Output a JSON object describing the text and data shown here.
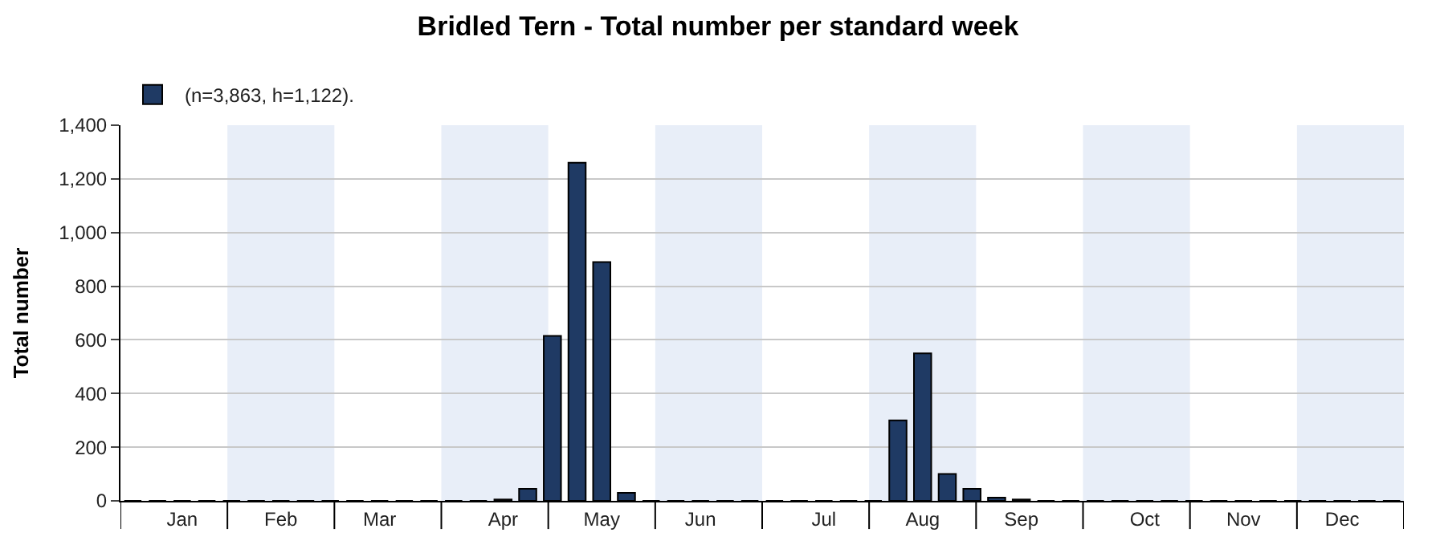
{
  "chart_data": {
    "type": "bar",
    "title": "Bridled Tern - Total number per standard week",
    "ylabel": "Total number",
    "categories": [
      null,
      null,
      "Jan",
      null,
      null,
      null,
      "Feb",
      null,
      null,
      null,
      "Mar",
      null,
      null,
      null,
      null,
      "Apr",
      null,
      null,
      null,
      "May",
      null,
      null,
      null,
      "Jun",
      null,
      null,
      null,
      null,
      "Jul",
      null,
      null,
      null,
      "Aug",
      null,
      null,
      null,
      "Sep",
      null,
      null,
      null,
      null,
      "Oct",
      null,
      null,
      null,
      "Nov",
      null,
      null,
      null,
      "Dec",
      null,
      null
    ],
    "series": [
      {
        "name": "(n=3,863, h=1,122).",
        "color": "#1f3a64",
        "values": [
          0,
          0,
          0,
          0,
          0,
          0,
          0,
          0,
          0,
          0,
          0,
          0,
          0,
          0,
          0,
          5,
          45,
          615,
          1260,
          890,
          30,
          0,
          0,
          0,
          0,
          0,
          0,
          0,
          0,
          0,
          0,
          300,
          550,
          100,
          45,
          12,
          5,
          0,
          0,
          0,
          0,
          0,
          0,
          0,
          0,
          0,
          0,
          0,
          0,
          0,
          0,
          0
        ]
      }
    ],
    "ylim": [
      0,
      1400
    ],
    "yticks": [
      0,
      {
        "value": 200,
        "label": "200"
      },
      400,
      600,
      800,
      {
        "value": 1000,
        "label": "1,000"
      },
      {
        "value": 1200,
        "label": "1,200"
      },
      {
        "value": 1400,
        "label": "1,400"
      }
    ],
    "grid": "y",
    "legend": "top left"
  }
}
